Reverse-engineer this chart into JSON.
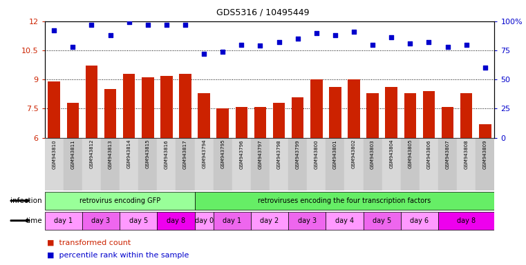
{
  "title": "GDS5316 / 10495449",
  "samples": [
    "GSM943810",
    "GSM943811",
    "GSM943812",
    "GSM943813",
    "GSM943814",
    "GSM943815",
    "GSM943816",
    "GSM943817",
    "GSM943794",
    "GSM943795",
    "GSM943796",
    "GSM943797",
    "GSM943798",
    "GSM943799",
    "GSM943800",
    "GSM943801",
    "GSM943802",
    "GSM943803",
    "GSM943804",
    "GSM943805",
    "GSM943806",
    "GSM943807",
    "GSM943808",
    "GSM943809"
  ],
  "bar_values": [
    8.9,
    7.8,
    9.7,
    8.5,
    9.3,
    9.1,
    9.2,
    9.3,
    8.3,
    7.5,
    7.6,
    7.6,
    7.8,
    8.1,
    9.0,
    8.6,
    9.0,
    8.3,
    8.6,
    8.3,
    8.4,
    7.6,
    8.3,
    6.7
  ],
  "scatter_values": [
    92,
    78,
    97,
    88,
    99,
    97,
    97,
    97,
    72,
    74,
    80,
    79,
    82,
    85,
    90,
    88,
    91,
    80,
    86,
    81,
    82,
    78,
    80,
    60
  ],
  "bar_color": "#cc2200",
  "scatter_color": "#0000cc",
  "ylim_left": [
    6,
    12
  ],
  "ylim_right": [
    0,
    100
  ],
  "yticks_left": [
    6,
    7.5,
    9,
    10.5,
    12
  ],
  "yticks_right": [
    0,
    25,
    50,
    75,
    100
  ],
  "ylabel_left_color": "#cc2200",
  "ylabel_right_color": "#0000cc",
  "infection_groups": [
    {
      "label": "retrovirus encoding GFP",
      "start": 0,
      "end": 8,
      "color": "#99ff99"
    },
    {
      "label": "retroviruses encoding the four transcription factors",
      "start": 8,
      "end": 24,
      "color": "#66ee66"
    }
  ],
  "time_groups": [
    {
      "label": "day 1",
      "start": 0,
      "end": 2,
      "color": "#ff99ff"
    },
    {
      "label": "day 3",
      "start": 2,
      "end": 4,
      "color": "#ee66ee"
    },
    {
      "label": "day 5",
      "start": 4,
      "end": 6,
      "color": "#ff99ff"
    },
    {
      "label": "day 8",
      "start": 6,
      "end": 8,
      "color": "#ee00ee"
    },
    {
      "label": "day 0",
      "start": 8,
      "end": 9,
      "color": "#ff99ff"
    },
    {
      "label": "day 1",
      "start": 9,
      "end": 11,
      "color": "#ee66ee"
    },
    {
      "label": "day 2",
      "start": 11,
      "end": 13,
      "color": "#ff99ff"
    },
    {
      "label": "day 3",
      "start": 13,
      "end": 15,
      "color": "#ee66ee"
    },
    {
      "label": "day 4",
      "start": 15,
      "end": 17,
      "color": "#ff99ff"
    },
    {
      "label": "day 5",
      "start": 17,
      "end": 19,
      "color": "#ee66ee"
    },
    {
      "label": "day 6",
      "start": 19,
      "end": 21,
      "color": "#ff99ff"
    },
    {
      "label": "day 8",
      "start": 21,
      "end": 24,
      "color": "#ee00ee"
    }
  ],
  "bg_color": "#ffffff"
}
